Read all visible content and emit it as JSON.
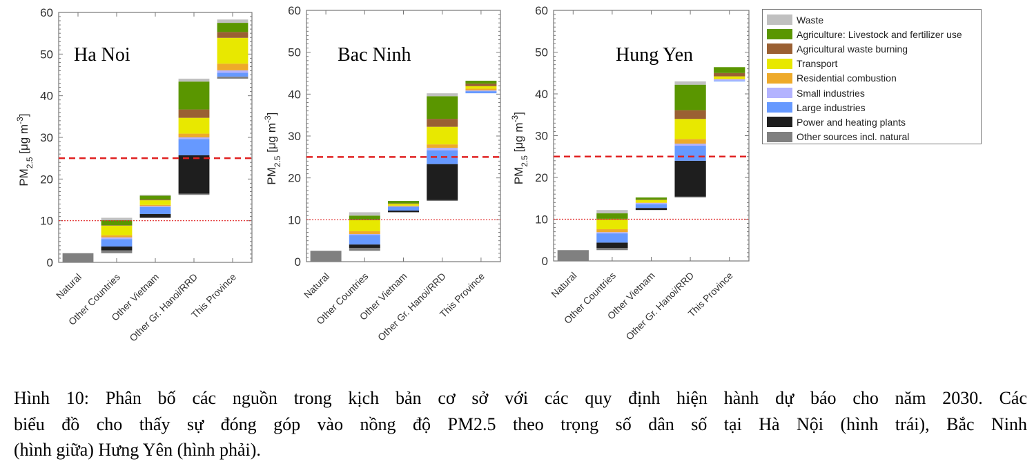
{
  "chart_data": [
    {
      "type": "bar",
      "stacking": "waterfall-stacked",
      "title": "Ha Noi",
      "ylabel": {
        "main": "PM",
        "sub": "2.5",
        "unit": " [μg m",
        "sup": "-3",
        "close": "]"
      },
      "ylim": [
        0,
        60
      ],
      "yticks": [
        "0",
        "10",
        "20",
        "30",
        "40",
        "50",
        "60"
      ],
      "categories": [
        "Natural",
        "Other Countries",
        "Other Vietnam",
        "Other Gr. Hanoi/RRD",
        "This Province"
      ],
      "reference_lines": [
        {
          "value": 25,
          "style": "dashed",
          "color": "#e02020"
        },
        {
          "value": 10,
          "style": "dotted",
          "color": "#e02020"
        }
      ],
      "series": [
        {
          "name": "Other sources incl. natural",
          "values": [
            2.2,
            0.7,
            0,
            0.3,
            0.5
          ]
        },
        {
          "name": "Power and heating plants",
          "values": [
            0,
            0.9,
            0.9,
            9.2,
            0
          ]
        },
        {
          "name": "Large industries",
          "values": [
            0,
            1.8,
            1.7,
            3.9,
            0.9
          ]
        },
        {
          "name": "Small industries",
          "values": [
            0,
            0.4,
            0.2,
            0.4,
            0.6
          ]
        },
        {
          "name": "Residential combustion",
          "values": [
            0,
            0.5,
            0.3,
            0.9,
            1.6
          ]
        },
        {
          "name": "Transport",
          "values": [
            0,
            2.3,
            1.1,
            3.8,
            6.2
          ]
        },
        {
          "name": "Agricultural waste burning",
          "values": [
            0,
            0.1,
            0.2,
            2.0,
            1.4
          ]
        },
        {
          "name": "Agriculture: Livestock and fertilizer use",
          "values": [
            0,
            1.2,
            0.9,
            6.7,
            2.2
          ]
        },
        {
          "name": "Waste",
          "values": [
            0,
            0.6,
            0.2,
            0.7,
            0.8
          ]
        }
      ]
    },
    {
      "type": "bar",
      "stacking": "waterfall-stacked",
      "title": "Bac Ninh",
      "ylabel": {
        "main": "PM",
        "sub": "2.5",
        "unit": " [μg m",
        "sup": "-3",
        "close": "]"
      },
      "ylim": [
        0,
        60
      ],
      "yticks": [
        "0",
        "10",
        "20",
        "30",
        "40",
        "50",
        "60"
      ],
      "categories": [
        "Natural",
        "Other Countries",
        "Other Vietnam",
        "Other Gr. Hanoi/RRD",
        "This Province"
      ],
      "reference_lines": [
        {
          "value": 25,
          "style": "dashed",
          "color": "#e02020"
        },
        {
          "value": 10,
          "style": "dotted",
          "color": "#e02020"
        }
      ],
      "series": [
        {
          "name": "Other sources incl. natural",
          "values": [
            2.6,
            0.7,
            0,
            0.2,
            0
          ]
        },
        {
          "name": "Power and heating plants",
          "values": [
            0,
            0.8,
            0.4,
            8.6,
            0
          ]
        },
        {
          "name": "Large industries",
          "values": [
            0,
            2.3,
            0.9,
            3.3,
            0.5
          ]
        },
        {
          "name": "Small industries",
          "values": [
            0,
            0.2,
            0.1,
            0.6,
            0.2
          ]
        },
        {
          "name": "Residential combustion",
          "values": [
            0,
            0.7,
            0.2,
            0.8,
            0.4
          ]
        },
        {
          "name": "Transport",
          "values": [
            0,
            2.6,
            0.4,
            4.2,
            0.6
          ]
        },
        {
          "name": "Agricultural waste burning",
          "values": [
            0,
            0.2,
            0.1,
            1.9,
            0.6
          ]
        },
        {
          "name": "Agriculture: Livestock and fertilizer use",
          "values": [
            0,
            0.9,
            0.6,
            5.4,
            0.7
          ]
        },
        {
          "name": "Waste",
          "values": [
            0,
            0.8,
            0,
            0.7,
            0
          ]
        }
      ]
    },
    {
      "type": "bar",
      "stacking": "waterfall-stacked",
      "title": "Hung Yen",
      "ylabel": {
        "main": "PM",
        "sub": "2.5",
        "unit": " [μg m",
        "sup": "-3",
        "close": "]"
      },
      "ylim": [
        0,
        60
      ],
      "yticks": [
        "0",
        "10",
        "20",
        "30",
        "40",
        "50",
        "60"
      ],
      "categories": [
        "Natural",
        "Other Countries",
        "Other Vietnam",
        "Other Gr. Hanoi/RRD",
        "This Province"
      ],
      "reference_lines": [
        {
          "value": 25,
          "style": "dashed",
          "color": "#e02020"
        },
        {
          "value": 10,
          "style": "dotted",
          "color": "#e02020"
        }
      ],
      "series": [
        {
          "name": "Other sources incl. natural",
          "values": [
            2.6,
            0.5,
            0,
            0.2,
            0
          ]
        },
        {
          "name": "Power and heating plants",
          "values": [
            0,
            1.3,
            0.5,
            8.6,
            0
          ]
        },
        {
          "name": "Large industries",
          "values": [
            0,
            2.2,
            0.9,
            3.6,
            0.2
          ]
        },
        {
          "name": "Small industries",
          "values": [
            0,
            0.3,
            0.3,
            0.5,
            0.3
          ]
        },
        {
          "name": "Residential combustion",
          "values": [
            0,
            0.7,
            0.1,
            1.1,
            0.1
          ]
        },
        {
          "name": "Transport",
          "values": [
            0,
            2.3,
            0.6,
            4.8,
            0.6
          ]
        },
        {
          "name": "Agricultural waste burning",
          "values": [
            0,
            0.2,
            0.1,
            2.1,
            0.8
          ]
        },
        {
          "name": "Agriculture: Livestock and fertilizer use",
          "values": [
            0,
            1.3,
            0.5,
            6.1,
            1.4
          ]
        },
        {
          "name": "Waste",
          "values": [
            0,
            0.8,
            0,
            0.8,
            0
          ]
        }
      ]
    }
  ],
  "legend": {
    "position": "right",
    "items": [
      {
        "label": "Waste",
        "color": "#c0c0c0"
      },
      {
        "label": "Agriculture: Livestock and fertilizer use",
        "color": "#5a9600"
      },
      {
        "label": "Agricultural waste burning",
        "color": "#9a6033"
      },
      {
        "label": "Transport",
        "color": "#e8e800"
      },
      {
        "label": "Residential combustion",
        "color": "#eeaa2a"
      },
      {
        "label": "Small industries",
        "color": "#b3b3ff"
      },
      {
        "label": "Large industries",
        "color": "#6699ff"
      },
      {
        "label": "Power and heating plants",
        "color": "#1e1e1e"
      },
      {
        "label": "Other sources incl. natural",
        "color": "#808080"
      }
    ]
  },
  "caption": {
    "lines": [
      "Hình 10: Phân bố các nguồn trong kịch bản cơ sở với các quy định hiện hành dự báo cho năm 2030. Các",
      "biểu đồ cho thấy sự đóng góp vào nồng độ PM2.5 theo trọng số dân số tại Hà Nội (hình trái), Bắc Ninh",
      "(hình giữa) Hưng Yên (hình phải)."
    ]
  }
}
